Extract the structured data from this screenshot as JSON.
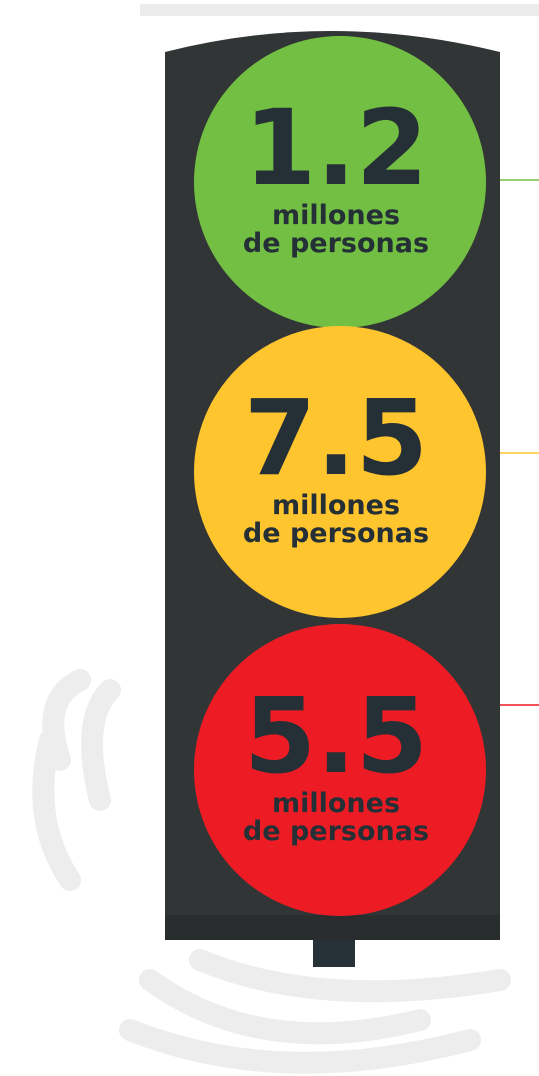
{
  "lights": [
    {
      "value": "1.2",
      "line1": "millones",
      "line2": "de personas",
      "color": "#72bf44"
    },
    {
      "value": "7.5",
      "line1": "millones",
      "line2": "de personas",
      "color": "#fec52e"
    },
    {
      "value": "5.5",
      "line1": "millones",
      "line2": "de personas",
      "color": "#ed1c24"
    }
  ]
}
